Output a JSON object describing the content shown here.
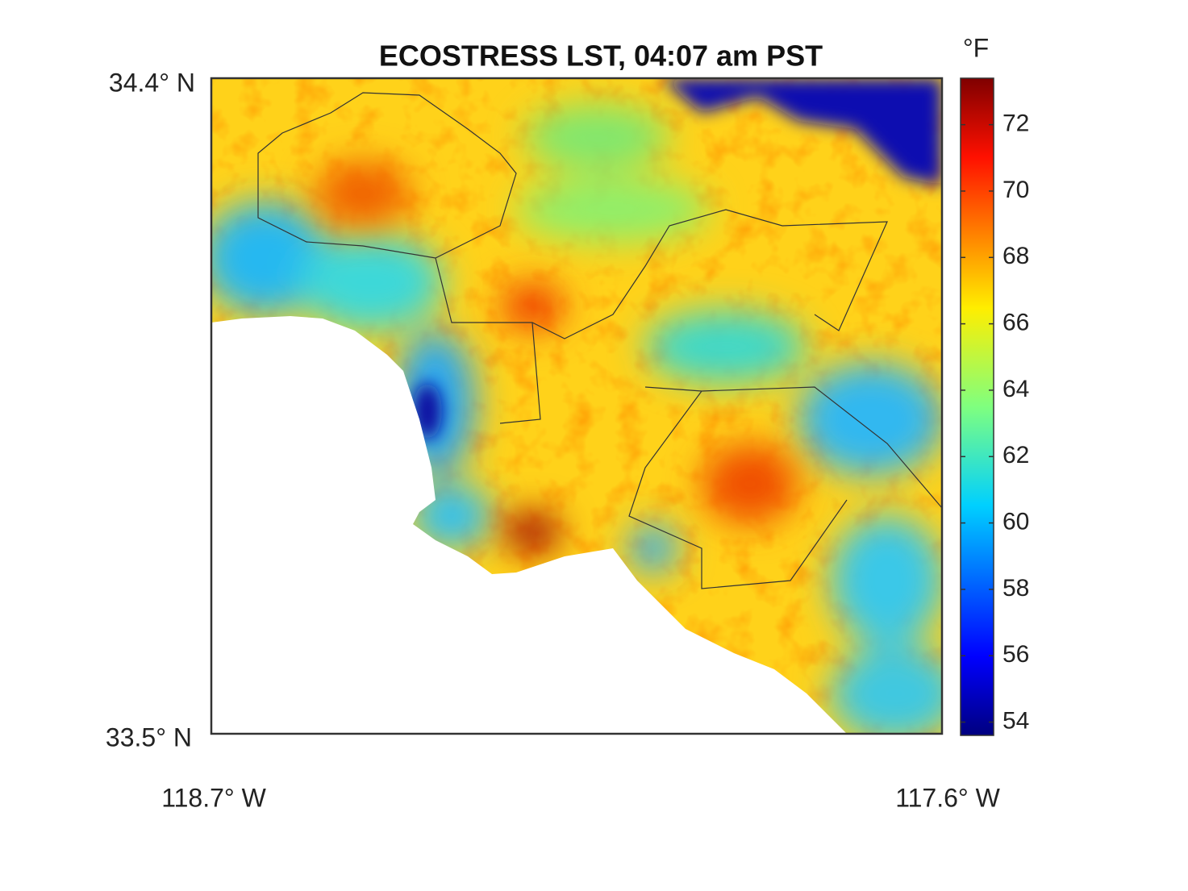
{
  "title": "ECOSTRESS LST, 04:07 am PST",
  "latitude_labels": [
    "34.4° N",
    "33.5° N"
  ],
  "longitude_labels": [
    "118.7° W",
    "117.6° W"
  ],
  "colorbar": {
    "unit": "°F",
    "range": [
      53.6,
      73.4
    ],
    "ticks": [
      54,
      56,
      58,
      60,
      62,
      64,
      66,
      68,
      70,
      72
    ]
  }
}
